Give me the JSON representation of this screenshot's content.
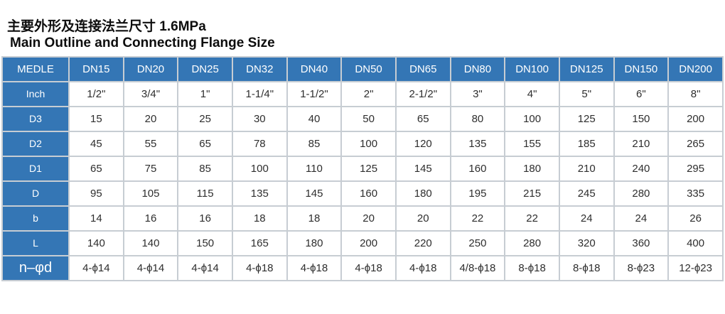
{
  "page": {
    "title_zh": "主要外形及连接法兰尺寸 1.6MPa",
    "title_en": "Main Outline and Connecting Flange Size"
  },
  "colors": {
    "header_bg": "#3476b5",
    "header_text": "#ffffff",
    "border": "#c7cdd3",
    "cell_bg": "#ffffff",
    "cell_text": "#2e2e2e",
    "title_text": "#0d0d0d"
  },
  "table": {
    "columns": [
      "MEDLE",
      "DN15",
      "DN20",
      "DN25",
      "DN32",
      "DN40",
      "DN50",
      "DN65",
      "DN80",
      "DN100",
      "DN125",
      "DN150",
      "DN200"
    ],
    "rows": [
      {
        "label": "Inch",
        "values": [
          "1/2\"",
          "3/4\"",
          "1\"",
          "1-1/4\"",
          "1-1/2\"",
          "2\"",
          "2-1/2\"",
          "3\"",
          "4\"",
          "5\"",
          "6\"",
          "8\""
        ]
      },
      {
        "label": "D3",
        "values": [
          "15",
          "20",
          "25",
          "30",
          "40",
          "50",
          "65",
          "80",
          "100",
          "125",
          "150",
          "200"
        ]
      },
      {
        "label": "D2",
        "values": [
          "45",
          "55",
          "65",
          "78",
          "85",
          "100",
          "120",
          "135",
          "155",
          "185",
          "210",
          "265"
        ]
      },
      {
        "label": "D1",
        "values": [
          "65",
          "75",
          "85",
          "100",
          "110",
          "125",
          "145",
          "160",
          "180",
          "210",
          "240",
          "295"
        ]
      },
      {
        "label": "D",
        "values": [
          "95",
          "105",
          "115",
          "135",
          "145",
          "160",
          "180",
          "195",
          "215",
          "245",
          "280",
          "335"
        ]
      },
      {
        "label": "b",
        "values": [
          "14",
          "16",
          "16",
          "18",
          "18",
          "20",
          "20",
          "22",
          "22",
          "24",
          "24",
          "26"
        ]
      },
      {
        "label": "L",
        "values": [
          "140",
          "140",
          "150",
          "165",
          "180",
          "200",
          "220",
          "250",
          "280",
          "320",
          "360",
          "400"
        ]
      },
      {
        "label": "n–φd",
        "values": [
          "4-ϕ14",
          "4-ϕ14",
          "4-ϕ14",
          "4-ϕ18",
          "4-ϕ18",
          "4-ϕ18",
          "4-ϕ18",
          "4/8-ϕ18",
          "8-ϕ18",
          "8-ϕ18",
          "8-ϕ23",
          "12-ϕ23"
        ]
      }
    ]
  }
}
